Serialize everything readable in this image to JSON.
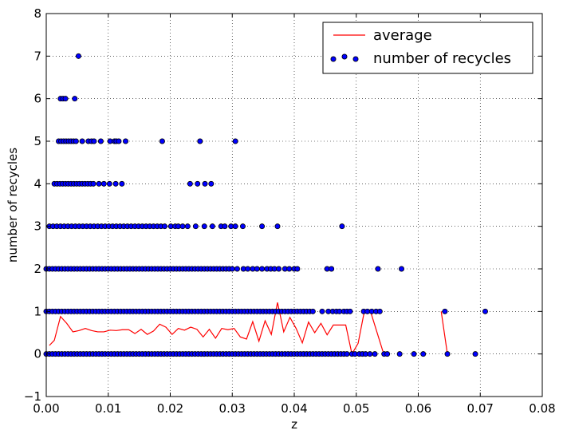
{
  "chart_data": {
    "type": "scatter",
    "title": "",
    "xlabel": "z",
    "ylabel": "number of recycles",
    "xlim": [
      0.0,
      0.08
    ],
    "ylim": [
      -1,
      8
    ],
    "grid": true,
    "legend_position": "top-right",
    "x_ticks": [
      0.0,
      0.01,
      0.02,
      0.03,
      0.04,
      0.05,
      0.06,
      0.07,
      0.08
    ],
    "x_tick_labels": [
      "0.00",
      "0.01",
      "0.02",
      "0.03",
      "0.04",
      "0.05",
      "0.06",
      "0.07",
      "0.08"
    ],
    "y_ticks": [
      -1,
      0,
      1,
      2,
      3,
      4,
      5,
      6,
      7,
      8
    ],
    "y_tick_labels": [
      "−1",
      "0",
      "1",
      "2",
      "3",
      "4",
      "5",
      "6",
      "7",
      "8"
    ],
    "series": [
      {
        "name": "average",
        "kind": "line",
        "color": "#ff0000",
        "segments": [
          [
            [
              0.0005,
              0.2
            ],
            [
              0.0013,
              0.32
            ],
            [
              0.0023,
              0.88
            ],
            [
              0.0033,
              0.72
            ],
            [
              0.0043,
              0.52
            ],
            [
              0.0053,
              0.55
            ],
            [
              0.0063,
              0.6
            ],
            [
              0.0073,
              0.55
            ],
            [
              0.0083,
              0.52
            ],
            [
              0.0093,
              0.52
            ],
            [
              0.0103,
              0.56
            ],
            [
              0.0113,
              0.55
            ],
            [
              0.0123,
              0.57
            ],
            [
              0.0133,
              0.57
            ],
            [
              0.0143,
              0.48
            ],
            [
              0.0153,
              0.58
            ],
            [
              0.0163,
              0.46
            ],
            [
              0.0173,
              0.54
            ],
            [
              0.0183,
              0.7
            ],
            [
              0.0193,
              0.63
            ],
            [
              0.0203,
              0.46
            ],
            [
              0.0213,
              0.6
            ],
            [
              0.0223,
              0.56
            ],
            [
              0.0233,
              0.63
            ],
            [
              0.0243,
              0.58
            ],
            [
              0.0253,
              0.4
            ],
            [
              0.0263,
              0.58
            ],
            [
              0.0273,
              0.37
            ],
            [
              0.0283,
              0.6
            ],
            [
              0.0293,
              0.57
            ],
            [
              0.0303,
              0.6
            ],
            [
              0.0313,
              0.4
            ],
            [
              0.0323,
              0.35
            ],
            [
              0.0333,
              0.76
            ],
            [
              0.0343,
              0.3
            ],
            [
              0.0353,
              0.78
            ],
            [
              0.0363,
              0.46
            ],
            [
              0.0373,
              1.21
            ],
            [
              0.0383,
              0.52
            ],
            [
              0.0393,
              0.86
            ],
            [
              0.0403,
              0.6
            ],
            [
              0.0413,
              0.26
            ],
            [
              0.0423,
              0.75
            ],
            [
              0.0433,
              0.5
            ],
            [
              0.0443,
              0.72
            ],
            [
              0.0453,
              0.45
            ],
            [
              0.0463,
              0.68
            ],
            [
              0.0473,
              0.68
            ],
            [
              0.0483,
              0.68
            ],
            [
              0.0493,
              0.0
            ],
            [
              0.0503,
              0.25
            ],
            [
              0.0513,
              1.0
            ],
            [
              0.0523,
              1.0
            ],
            [
              0.0543,
              0.06
            ]
          ],
          [
            [
              0.0637,
              1.0
            ],
            [
              0.0647,
              0.0
            ]
          ]
        ]
      },
      {
        "name": "number of recycles",
        "kind": "scatter",
        "color": "#0000ff",
        "rows": [
          {
            "y": 0,
            "x_start": 0.0,
            "x_end": 0.048,
            "step": 0.0005,
            "extra_x": [
              0.0485,
              0.0493,
              0.0498,
              0.0505,
              0.051,
              0.0515,
              0.0522,
              0.053,
              0.0545,
              0.055,
              0.057,
              0.0593,
              0.0608,
              0.0647,
              0.0692
            ]
          },
          {
            "y": 1,
            "x_start": 0.0,
            "x_end": 0.043,
            "step": 0.0005,
            "extra_x": [
              0.0445,
              0.0455,
              0.0462,
              0.0468,
              0.0473,
              0.048,
              0.0485,
              0.049,
              0.0512,
              0.0518,
              0.0525,
              0.0532,
              0.0538,
              0.0643,
              0.0708
            ]
          },
          {
            "y": 2,
            "x_start": 0.0,
            "x_end": 0.03,
            "step": 0.0005,
            "extra_x": [
              0.0308,
              0.0318,
              0.0325,
              0.0333,
              0.034,
              0.0348,
              0.0356,
              0.0362,
              0.0368,
              0.0375,
              0.0385,
              0.0392,
              0.04,
              0.0405,
              0.0453,
              0.046,
              0.0535,
              0.0573
            ]
          },
          {
            "y": 3,
            "x_start": 0.0005,
            "x_end": 0.0195,
            "step": 0.0006,
            "extra_x": [
              0.0201,
              0.0208,
              0.0213,
              0.022,
              0.0228,
              0.0241,
              0.0255,
              0.0268,
              0.0282,
              0.0288,
              0.0298,
              0.0305,
              0.0317,
              0.0348,
              0.0373,
              0.0477
            ]
          },
          {
            "y": 4,
            "x_start": 0.0013,
            "x_end": 0.0078,
            "step": 0.00045,
            "extra_x": [
              0.0085,
              0.0093,
              0.0102,
              0.0112,
              0.0122,
              0.0232,
              0.0244,
              0.0256,
              0.0266
            ]
          },
          {
            "y": 5,
            "x_start": 0.002,
            "x_end": 0.0048,
            "step": 0.0004,
            "extra_x": [
              0.0058,
              0.0068,
              0.0073,
              0.0077,
              0.0088,
              0.0103,
              0.011,
              0.0113,
              0.0117,
              0.0128,
              0.0187,
              0.0248,
              0.0305
            ]
          },
          {
            "y": 6,
            "x_start": 0.0023,
            "x_end": 0.0031,
            "step": 0.0004,
            "extra_x": [
              0.0046
            ]
          },
          {
            "y": 7,
            "x_start": 0.0052,
            "x_end": 0.0052,
            "step": 0.001,
            "extra_x": []
          }
        ]
      }
    ]
  }
}
